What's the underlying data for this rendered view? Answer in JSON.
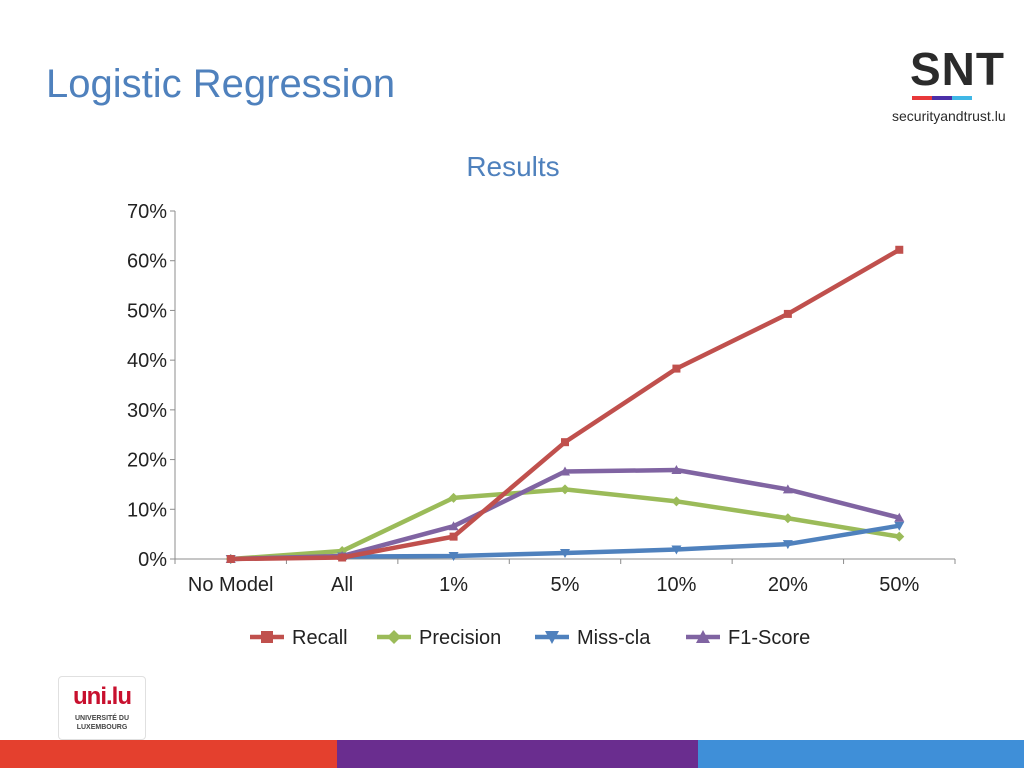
{
  "slide": {
    "title": "Logistic Regression"
  },
  "logos": {
    "snt_letters": "SNT",
    "snt_tagline": "securityandtrust.lu",
    "snt_bar_colors": [
      "#e8383a",
      "#4b2fa8",
      "#3fb7e6"
    ],
    "uni_mark": "uni.lu",
    "uni_line1": "UNIVERSITÉ DU",
    "uni_line2": "LUXEMBOURG"
  },
  "footer": {
    "colors": [
      "#e4402e",
      "#6a2d8f",
      "#3f8fd8"
    ]
  },
  "chart_data": {
    "type": "line",
    "title": "Results",
    "xlabel": "",
    "ylabel": "",
    "categories": [
      "No Model",
      "All",
      "1%",
      "5%",
      "10%",
      "20%",
      "50%"
    ],
    "ylim": [
      0,
      70
    ],
    "yticks": [
      0,
      10,
      20,
      30,
      40,
      50,
      60,
      70
    ],
    "ytick_labels": [
      "0%",
      "10%",
      "20%",
      "30%",
      "40%",
      "50%",
      "60%",
      "70%"
    ],
    "grid": false,
    "legend": "bottom",
    "series": [
      {
        "name": "Recall",
        "color": "#c0504d",
        "marker": "square",
        "values": [
          0,
          0.3,
          4.5,
          23.5,
          38.3,
          49.3,
          62.2
        ]
      },
      {
        "name": "Precision",
        "color": "#9bbb59",
        "marker": "diamond",
        "values": [
          0,
          1.6,
          12.3,
          14.0,
          11.6,
          8.2,
          4.5
        ]
      },
      {
        "name": "Miss-cla",
        "color": "#4f81bd",
        "marker": "triangle-down",
        "values": [
          0,
          0.5,
          0.6,
          1.2,
          1.9,
          3.0,
          6.7
        ]
      },
      {
        "name": "F1-Score",
        "color": "#8064a2",
        "marker": "triangle-up",
        "values": [
          0,
          0.6,
          6.6,
          17.6,
          17.9,
          14.0,
          8.3
        ]
      }
    ]
  }
}
